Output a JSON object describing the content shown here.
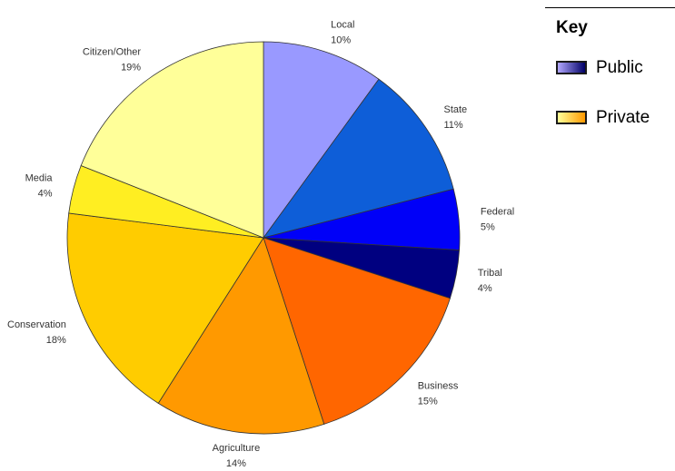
{
  "chart_data": {
    "type": "pie",
    "title": "",
    "start_angle_deg": 0,
    "direction": "clockwise",
    "slices": [
      {
        "name": "Local",
        "value": 10,
        "label": "10%",
        "color": "#9999ff",
        "group": "Public"
      },
      {
        "name": "State",
        "value": 11,
        "label": "11%",
        "color": "#0e5ed8",
        "group": "Public"
      },
      {
        "name": "Federal",
        "value": 5,
        "label": "5%",
        "color": "#0000f8",
        "group": "Public"
      },
      {
        "name": "Tribal",
        "value": 4,
        "label": "4%",
        "color": "#000080",
        "group": "Public"
      },
      {
        "name": "Business",
        "value": 15,
        "label": "15%",
        "color": "#ff6600",
        "group": "Private"
      },
      {
        "name": "Agriculture",
        "value": 14,
        "label": "14%",
        "color": "#ff9900",
        "group": "Private"
      },
      {
        "name": "Conservation",
        "value": 18,
        "label": "18%",
        "color": "#ffcc00",
        "group": "Private"
      },
      {
        "name": "Media",
        "value": 4,
        "label": "4%",
        "color": "#ffee22",
        "group": "Private"
      },
      {
        "name": "Citizen/Other",
        "value": 19,
        "label": "19%",
        "color": "#ffff99",
        "group": "Private"
      }
    ],
    "legend_position": "top-right"
  },
  "legend": {
    "title": "Key",
    "items": [
      {
        "label": "Public",
        "colors": [
          "#b3a8ff",
          "#000066"
        ]
      },
      {
        "label": "Private",
        "colors": [
          "#ffff99",
          "#ff9900"
        ]
      }
    ]
  }
}
